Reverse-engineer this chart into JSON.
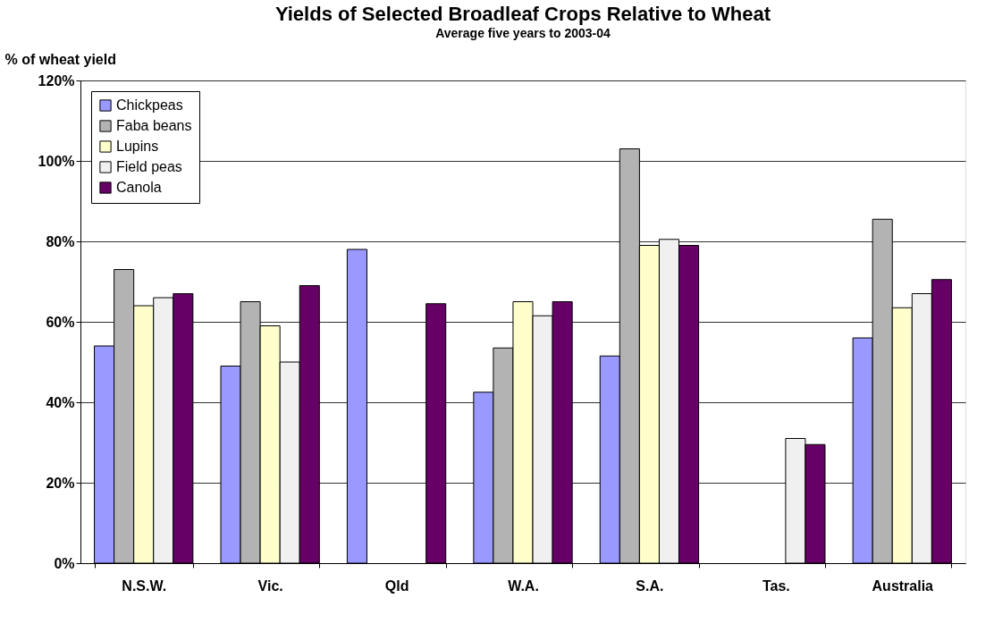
{
  "chart_data": {
    "type": "bar",
    "title": "Yields of Selected Broadleaf Crops Relative to Wheat",
    "subtitle": "Average five years to 2003-04",
    "ylabel": "% of wheat yield",
    "categories": [
      "N.S.W.",
      "Vic.",
      "Qld",
      "W.A.",
      "S.A.",
      "Tas.",
      "Australia"
    ],
    "series": [
      {
        "name": "Chickpeas",
        "color": "#9999ff",
        "values": [
          54,
          49,
          78,
          42.5,
          51.5,
          null,
          56
        ]
      },
      {
        "name": "Faba beans",
        "color": "#b3b3b3",
        "values": [
          73,
          65,
          null,
          53.5,
          103,
          null,
          85.5
        ]
      },
      {
        "name": "Lupins",
        "color": "#ffffcc",
        "values": [
          64,
          59,
          null,
          65,
          79,
          null,
          63.5
        ]
      },
      {
        "name": "Field peas",
        "color": "#f0f0f0",
        "values": [
          66,
          50,
          null,
          61.5,
          80.5,
          31,
          67
        ]
      },
      {
        "name": "Canola",
        "color": "#660066",
        "values": [
          67,
          69,
          64.5,
          65,
          79,
          29.5,
          70.5
        ]
      }
    ],
    "ylim": [
      0,
      120
    ],
    "yticks": [
      {
        "value": 0,
        "label": "0%"
      },
      {
        "value": 20,
        "label": "20%"
      },
      {
        "value": 40,
        "label": "40%"
      },
      {
        "value": 60,
        "label": "60%"
      },
      {
        "value": 80,
        "label": "80%"
      },
      {
        "value": 100,
        "label": "100%"
      },
      {
        "value": 120,
        "label": "120%"
      }
    ],
    "grid": "y",
    "legend": "top left"
  }
}
